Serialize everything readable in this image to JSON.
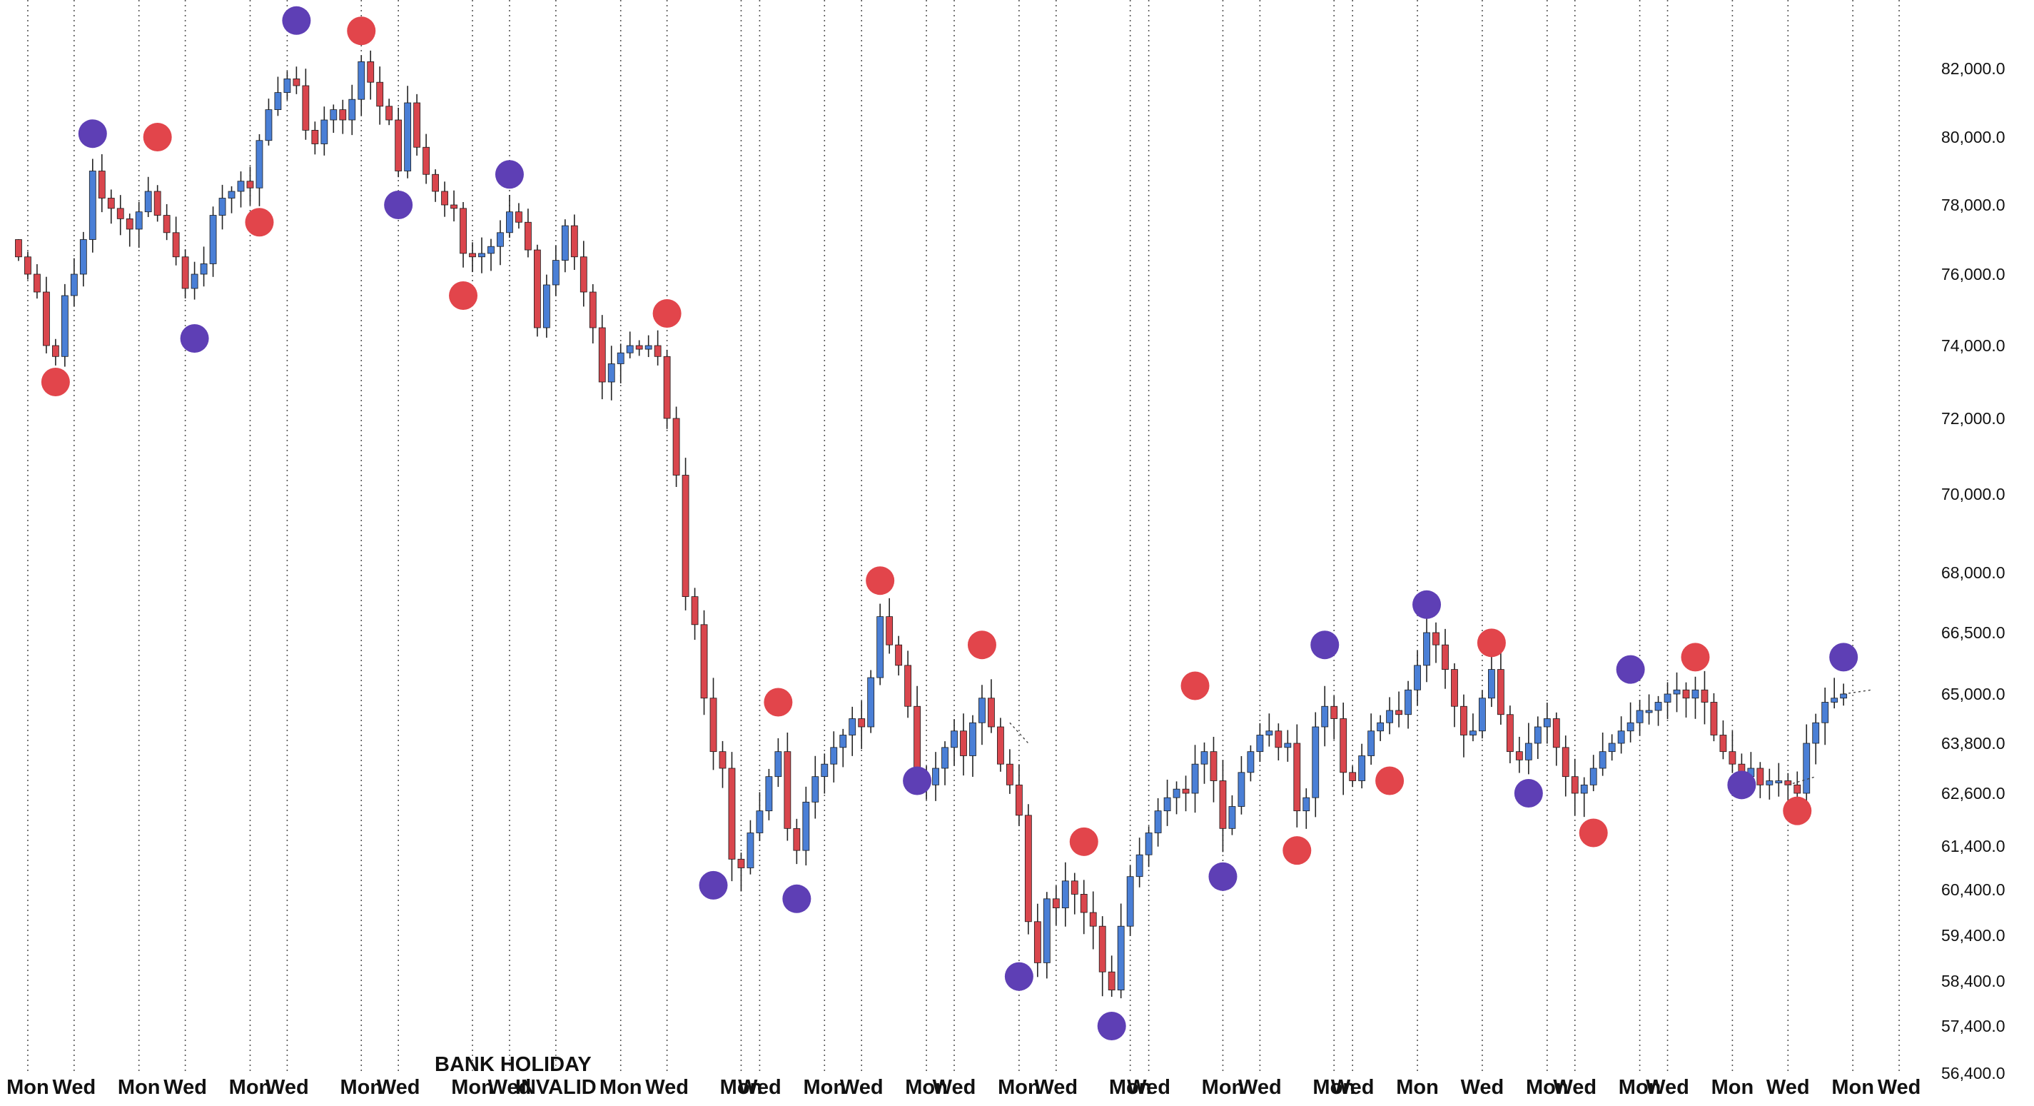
{
  "chart_data": {
    "type": "candlestick",
    "colors": {
      "up": "#4a7fd6",
      "down": "#d9464d",
      "wick": "#222222",
      "marker_high": "#e2454b",
      "marker_low": "#5e3fb5",
      "grid": "#555555",
      "background": "#ffffff"
    },
    "y_ticks": [
      82000,
      80000,
      78000,
      76000,
      74000,
      72000,
      70000,
      68000,
      66500,
      65000,
      63800,
      62600,
      61400,
      60400,
      59400,
      58400,
      57400,
      56400
    ],
    "y_tick_labels": [
      "82,000.0",
      "80,000.0",
      "78,000.0",
      "76,000.0",
      "74,000.0",
      "72,000.0",
      "70,000.0",
      "68,000.0",
      "66,500.0",
      "65,000.0",
      "63,800.0",
      "62,600.0",
      "61,400.0",
      "60,400.0",
      "59,400.0",
      "58,400.0",
      "57,400.0",
      "56,400.0"
    ],
    "x_tick_labels": [
      "Mon",
      "Wed",
      "Mon",
      "Wed",
      "Mon",
      "Wed",
      "Mon",
      "Wed",
      "Mon",
      "Wed",
      "INVALID",
      "Mon",
      "Wed",
      "Mon",
      "Wed",
      "Mon",
      "Wed",
      "Mon",
      "Wed",
      "Mon",
      "Wed",
      "Mon",
      "Wed",
      "Mon",
      "Wed",
      "Mon",
      "Wed",
      "Mon",
      "Wed",
      "Mon",
      "Wed",
      "Mon",
      "Wed",
      "Mon",
      "Wed",
      "Mon",
      "Wed"
    ],
    "x_tick_positions": [
      0,
      5,
      12,
      17,
      24,
      28,
      36,
      40,
      48,
      52,
      57,
      64,
      69,
      77,
      79,
      86,
      90,
      97,
      100,
      107,
      111,
      119,
      121,
      129,
      133,
      141,
      143,
      150,
      157,
      164,
      167,
      174,
      177,
      184,
      190,
      197,
      202
    ],
    "annotation": "BANK HOLIDAY",
    "annotation_x": 57,
    "x_range": [
      -3,
      205
    ],
    "markers": [
      {
        "x": 3,
        "y": 73000,
        "kind": "high"
      },
      {
        "x": 7,
        "y": 80100,
        "kind": "low"
      },
      {
        "x": 14,
        "y": 80000,
        "kind": "high"
      },
      {
        "x": 18,
        "y": 74200,
        "kind": "low"
      },
      {
        "x": 25,
        "y": 77500,
        "kind": "high"
      },
      {
        "x": 29,
        "y": 83400,
        "kind": "low"
      },
      {
        "x": 36,
        "y": 83100,
        "kind": "high"
      },
      {
        "x": 40,
        "y": 78000,
        "kind": "low"
      },
      {
        "x": 47,
        "y": 75400,
        "kind": "high"
      },
      {
        "x": 52,
        "y": 78900,
        "kind": "low"
      },
      {
        "x": 69,
        "y": 74900,
        "kind": "high"
      },
      {
        "x": 74,
        "y": 60500,
        "kind": "low"
      },
      {
        "x": 81,
        "y": 64800,
        "kind": "high"
      },
      {
        "x": 83,
        "y": 60200,
        "kind": "low"
      },
      {
        "x": 92,
        "y": 67800,
        "kind": "high"
      },
      {
        "x": 96,
        "y": 62900,
        "kind": "low"
      },
      {
        "x": 103,
        "y": 66200,
        "kind": "high"
      },
      {
        "x": 107,
        "y": 58500,
        "kind": "low"
      },
      {
        "x": 114,
        "y": 61500,
        "kind": "high"
      },
      {
        "x": 117,
        "y": 57400,
        "kind": "low"
      },
      {
        "x": 126,
        "y": 65200,
        "kind": "high"
      },
      {
        "x": 129,
        "y": 60700,
        "kind": "low"
      },
      {
        "x": 137,
        "y": 61300,
        "kind": "high"
      },
      {
        "x": 140,
        "y": 66200,
        "kind": "low"
      },
      {
        "x": 147,
        "y": 62900,
        "kind": "high"
      },
      {
        "x": 151,
        "y": 67200,
        "kind": "low"
      },
      {
        "x": 158,
        "y": 66250,
        "kind": "high"
      },
      {
        "x": 162,
        "y": 62600,
        "kind": "low"
      },
      {
        "x": 169,
        "y": 61700,
        "kind": "high"
      },
      {
        "x": 173,
        "y": 65600,
        "kind": "low"
      },
      {
        "x": 180,
        "y": 65900,
        "kind": "high"
      },
      {
        "x": 185,
        "y": 62800,
        "kind": "low"
      },
      {
        "x": 191,
        "y": 62200,
        "kind": "high"
      },
      {
        "x": 196,
        "y": 65900,
        "kind": "low"
      }
    ],
    "anchors": [
      [
        -2,
        77000
      ],
      [
        0,
        76000
      ],
      [
        1,
        75500
      ],
      [
        2,
        74000
      ],
      [
        3,
        73700
      ],
      [
        4,
        75400
      ],
      [
        5,
        76000
      ],
      [
        6,
        77000
      ],
      [
        7,
        79000
      ],
      [
        8,
        78200
      ],
      [
        10,
        77600
      ],
      [
        11,
        77300
      ],
      [
        12,
        77800
      ],
      [
        13,
        78400
      ],
      [
        14,
        77700
      ],
      [
        15,
        77200
      ],
      [
        16,
        76500
      ],
      [
        17,
        75600
      ],
      [
        18,
        76000
      ],
      [
        19,
        76300
      ],
      [
        20,
        77700
      ],
      [
        21,
        78200
      ],
      [
        22,
        78400
      ],
      [
        23,
        78700
      ],
      [
        24,
        78500
      ],
      [
        25,
        79900
      ],
      [
        26,
        80800
      ],
      [
        27,
        81300
      ],
      [
        28,
        81700
      ],
      [
        29,
        81500
      ],
      [
        30,
        80200
      ],
      [
        31,
        79800
      ],
      [
        32,
        80500
      ],
      [
        33,
        80800
      ],
      [
        34,
        80500
      ],
      [
        35,
        81100
      ],
      [
        36,
        82200
      ],
      [
        37,
        81600
      ],
      [
        38,
        80900
      ],
      [
        39,
        80500
      ],
      [
        40,
        79000
      ],
      [
        41,
        81000
      ],
      [
        42,
        79700
      ],
      [
        43,
        78900
      ],
      [
        44,
        78400
      ],
      [
        45,
        78000
      ],
      [
        46,
        77900
      ],
      [
        47,
        76600
      ],
      [
        48,
        76500
      ],
      [
        49,
        76600
      ],
      [
        50,
        76800
      ],
      [
        51,
        77200
      ],
      [
        52,
        77800
      ],
      [
        53,
        77500
      ],
      [
        54,
        76700
      ],
      [
        55,
        74500
      ],
      [
        56,
        75700
      ],
      [
        57,
        76400
      ],
      [
        58,
        77400
      ],
      [
        59,
        76500
      ],
      [
        60,
        75500
      ],
      [
        61,
        74500
      ],
      [
        62,
        73000
      ],
      [
        63,
        73500
      ],
      [
        64,
        73800
      ],
      [
        65,
        74000
      ],
      [
        66,
        73900
      ],
      [
        67,
        74000
      ],
      [
        68,
        73700
      ],
      [
        69,
        72000
      ],
      [
        70,
        70500
      ],
      [
        71,
        67400
      ],
      [
        72,
        66700
      ],
      [
        73,
        64900
      ],
      [
        74,
        63600
      ],
      [
        75,
        63200
      ],
      [
        76,
        61100
      ],
      [
        77,
        60900
      ],
      [
        78,
        61700
      ],
      [
        79,
        62200
      ],
      [
        80,
        63000
      ],
      [
        81,
        63600
      ],
      [
        82,
        61800
      ],
      [
        83,
        61300
      ],
      [
        84,
        62400
      ],
      [
        85,
        63000
      ],
      [
        86,
        63300
      ],
      [
        87,
        63700
      ],
      [
        88,
        64000
      ],
      [
        89,
        64400
      ],
      [
        90,
        64200
      ],
      [
        91,
        65400
      ],
      [
        92,
        66900
      ],
      [
        93,
        66200
      ],
      [
        94,
        65700
      ],
      [
        95,
        64700
      ],
      [
        96,
        63000
      ],
      [
        97,
        62800
      ],
      [
        98,
        63200
      ],
      [
        99,
        63700
      ],
      [
        100,
        64100
      ],
      [
        101,
        63500
      ],
      [
        102,
        64300
      ],
      [
        103,
        64900
      ],
      [
        104,
        64200
      ],
      [
        105,
        63300
      ],
      [
        106,
        62800
      ],
      [
        107,
        62100
      ],
      [
        108,
        59700
      ],
      [
        109,
        58800
      ],
      [
        110,
        60200
      ],
      [
        111,
        60000
      ],
      [
        112,
        60600
      ],
      [
        113,
        60300
      ],
      [
        114,
        59900
      ],
      [
        115,
        59600
      ],
      [
        116,
        58600
      ],
      [
        117,
        58200
      ],
      [
        118,
        59600
      ],
      [
        119,
        60700
      ],
      [
        120,
        61200
      ],
      [
        121,
        61700
      ],
      [
        122,
        62200
      ],
      [
        123,
        62500
      ],
      [
        124,
        62700
      ],
      [
        125,
        62600
      ],
      [
        126,
        63300
      ],
      [
        127,
        63600
      ],
      [
        128,
        62900
      ],
      [
        129,
        61800
      ],
      [
        130,
        62300
      ],
      [
        131,
        63100
      ],
      [
        132,
        63600
      ],
      [
        133,
        64000
      ],
      [
        134,
        64100
      ],
      [
        135,
        63700
      ],
      [
        136,
        63800
      ],
      [
        137,
        62200
      ],
      [
        138,
        62500
      ],
      [
        139,
        64200
      ],
      [
        140,
        64700
      ],
      [
        141,
        64400
      ],
      [
        142,
        63100
      ],
      [
        143,
        62900
      ],
      [
        144,
        63500
      ],
      [
        145,
        64100
      ],
      [
        146,
        64300
      ],
      [
        147,
        64600
      ],
      [
        148,
        64500
      ],
      [
        149,
        65100
      ],
      [
        150,
        65700
      ],
      [
        151,
        66500
      ],
      [
        152,
        66200
      ],
      [
        153,
        65600
      ],
      [
        154,
        64700
      ],
      [
        155,
        64000
      ],
      [
        156,
        64100
      ],
      [
        157,
        64900
      ],
      [
        158,
        65600
      ],
      [
        159,
        64500
      ],
      [
        160,
        63600
      ],
      [
        161,
        63400
      ],
      [
        162,
        63800
      ],
      [
        163,
        64200
      ],
      [
        164,
        64400
      ],
      [
        165,
        63700
      ],
      [
        166,
        63000
      ],
      [
        167,
        62600
      ],
      [
        168,
        62800
      ],
      [
        169,
        63200
      ],
      [
        170,
        63600
      ],
      [
        171,
        63800
      ],
      [
        172,
        64100
      ],
      [
        173,
        64300
      ],
      [
        174,
        64600
      ],
      [
        175,
        64600
      ],
      [
        176,
        64800
      ],
      [
        177,
        65000
      ],
      [
        178,
        65100
      ],
      [
        179,
        64900
      ],
      [
        180,
        65100
      ],
      [
        181,
        64800
      ],
      [
        182,
        64000
      ],
      [
        183,
        63600
      ],
      [
        184,
        63300
      ],
      [
        185,
        63000
      ],
      [
        186,
        63200
      ],
      [
        187,
        62800
      ],
      [
        188,
        62900
      ],
      [
        189,
        62900
      ],
      [
        190,
        62800
      ],
      [
        191,
        62600
      ],
      [
        192,
        63800
      ],
      [
        193,
        64300
      ],
      [
        194,
        64800
      ],
      [
        195,
        64900
      ],
      [
        196,
        65000
      ]
    ]
  }
}
